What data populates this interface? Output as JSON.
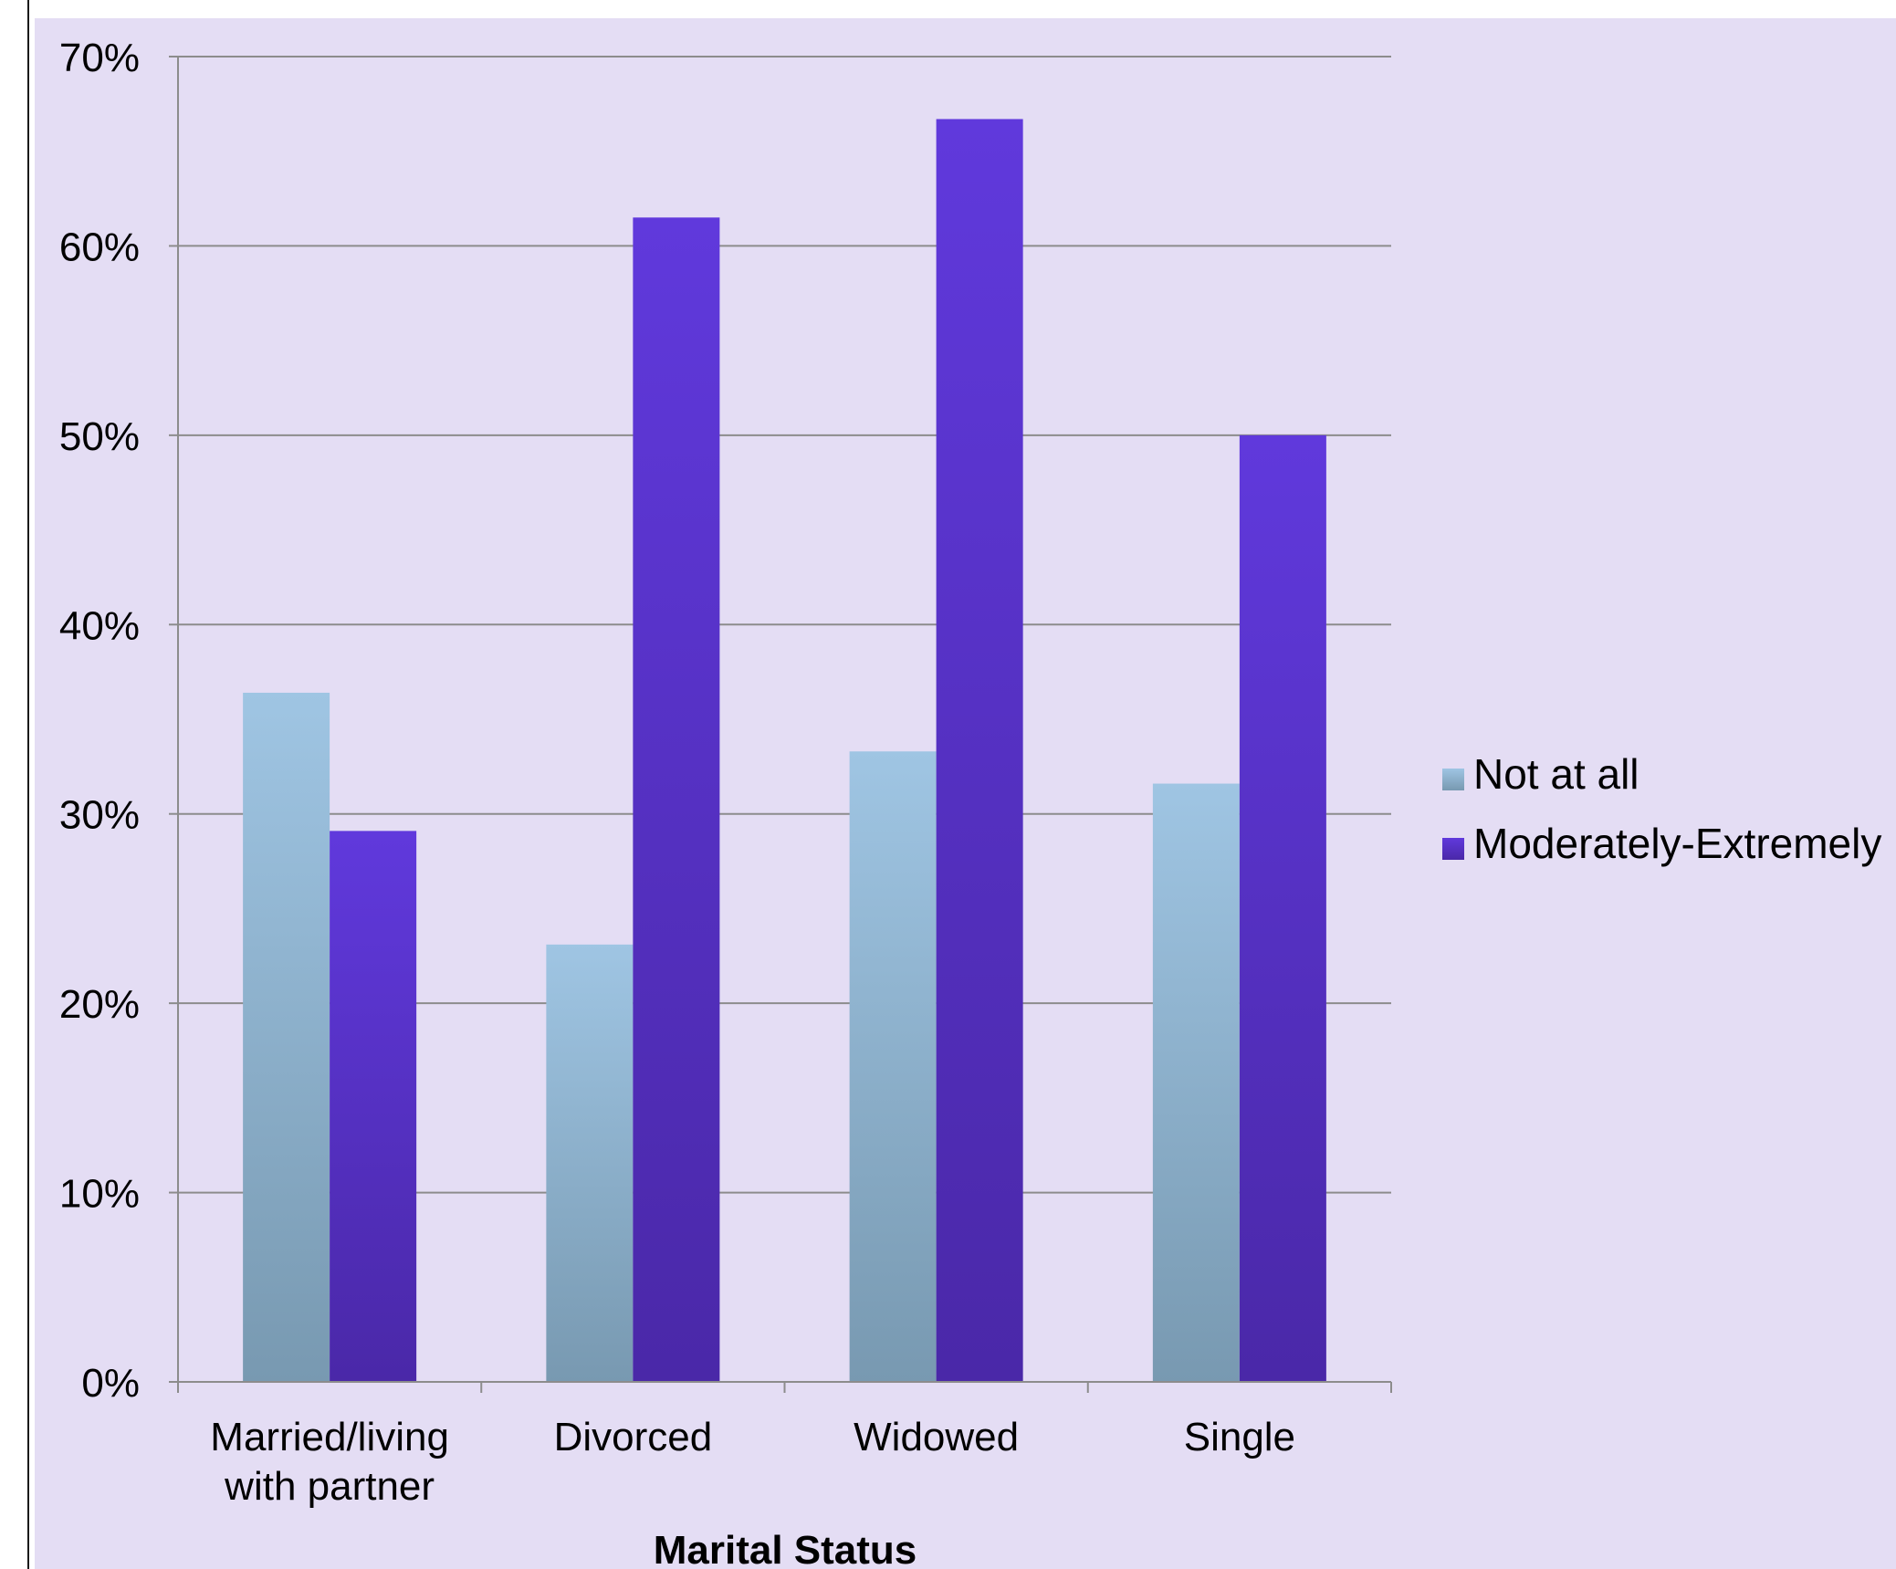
{
  "chart_data": {
    "type": "bar",
    "title": "",
    "xlabel": "Marital Status",
    "ylabel": "",
    "categories": [
      [
        "Married/living",
        "with partner"
      ],
      [
        "Divorced"
      ],
      [
        "Widowed"
      ],
      [
        "Single"
      ]
    ],
    "series": [
      {
        "name": "Not at all",
        "values": [
          36.4,
          23.1,
          33.3,
          31.6
        ],
        "color_top": "#9fc5e3",
        "color_bottom": "#7899b1"
      },
      {
        "name": "Moderately-Extremely",
        "values": [
          29.1,
          61.5,
          66.7,
          50.0
        ],
        "color_top": "#6039dc",
        "color_bottom": "#4a28a8"
      }
    ],
    "ylim": [
      0,
      70
    ],
    "yticks": [
      0,
      10,
      20,
      30,
      40,
      50,
      60,
      70
    ],
    "ytick_labels": [
      "0%",
      "10%",
      "20%",
      "30%",
      "40%",
      "50%",
      "60%",
      "70%"
    ],
    "grid": true,
    "legend_position": "right",
    "background_color": "#e4ddf4",
    "gridline_color": "#8c8c8c"
  }
}
